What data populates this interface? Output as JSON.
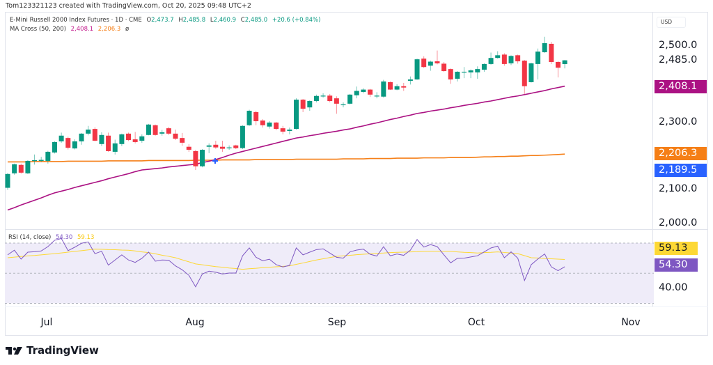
{
  "credit": "Tom123321123 created with TradingView.com, Oct 20, 2025 09:48 UTC+2",
  "legend": {
    "symbol": "E-Mini Russell 2000 Index Futures · 1D · CME",
    "open_label": "O",
    "open": "2,473.7",
    "high_label": "H",
    "high": "2,485.8",
    "low_label": "L",
    "low": "2,460.9",
    "close_label": "C",
    "close": "2,485.0",
    "change": "+20.6 (+0.84%)",
    "ma_title": "MA Cross (50, 200)",
    "ma50": "2,408.1",
    "ma200": "2,206.3",
    "ma_extra": "ø"
  },
  "rsi_legend": {
    "title": "RSI (14, close)",
    "rsi": "54.30",
    "rsi_ma": "59.13"
  },
  "currency": "USD",
  "price_axis": {
    "ticks": [
      "2,500.0",
      "2,300.0",
      "2,100.0",
      "2,000.0"
    ],
    "last_price": "2,485.0",
    "badges": [
      {
        "label": "2,408.1",
        "color": "#ab1283"
      },
      {
        "label": "2,206.3",
        "color": "#f57f17"
      },
      {
        "label": "2,189.5",
        "color": "#2962ff"
      }
    ]
  },
  "rsi_axis": {
    "ticks": [
      "40.00"
    ],
    "badges": [
      {
        "label": "59.13",
        "color": "#fdd835"
      },
      {
        "label": "54.30",
        "color": "#7e57c2"
      }
    ]
  },
  "time_axis": [
    "Jul",
    "Aug",
    "Sep",
    "Oct",
    "Nov"
  ],
  "brand": "TradingView",
  "colors": {
    "up": "#089981",
    "down": "#f23645",
    "ma50": "#ab1283",
    "ma200": "#f57f17",
    "rsi": "#7e57c2",
    "rsi_ma": "#fdd835",
    "rsi_band": "#efecf9",
    "cross": "#2962ff"
  },
  "chart_data": [
    {
      "type": "candlestick",
      "title": "E-Mini Russell 2000 Index Futures · 1D · CME",
      "ylim": [
        1983,
        2627
      ],
      "grid": false,
      "ohlc_fields": [
        "open",
        "high",
        "low",
        "close"
      ],
      "ohlc": [
        [
          2106,
          2150,
          2100,
          2147
        ],
        [
          2149,
          2178,
          2145,
          2176
        ],
        [
          2174,
          2178,
          2148,
          2151
        ],
        [
          2149,
          2188,
          2147,
          2186
        ],
        [
          2186,
          2205,
          2175,
          2188
        ],
        [
          2186,
          2198,
          2182,
          2189
        ],
        [
          2186,
          2216,
          2178,
          2213
        ],
        [
          2211,
          2244,
          2208,
          2242
        ],
        [
          2244,
          2270,
          2240,
          2261
        ],
        [
          2254,
          2258,
          2220,
          2225
        ],
        [
          2223,
          2250,
          2220,
          2244
        ],
        [
          2244,
          2269,
          2234,
          2267
        ],
        [
          2267,
          2290,
          2262,
          2279
        ],
        [
          2281,
          2286,
          2244,
          2246
        ],
        [
          2236,
          2271,
          2230,
          2263
        ],
        [
          2261,
          2270,
          2213,
          2215
        ],
        [
          2213,
          2249,
          2205,
          2238
        ],
        [
          2236,
          2267,
          2230,
          2265
        ],
        [
          2267,
          2270,
          2245,
          2248
        ],
        [
          2250,
          2272,
          2238,
          2242
        ],
        [
          2246,
          2265,
          2240,
          2259
        ],
        [
          2263,
          2296,
          2262,
          2294
        ],
        [
          2292,
          2294,
          2261,
          2263
        ],
        [
          2267,
          2278,
          2261,
          2271
        ],
        [
          2283,
          2287,
          2263,
          2267
        ],
        [
          2267,
          2279,
          2248,
          2252
        ],
        [
          2254,
          2269,
          2231,
          2240
        ],
        [
          2228,
          2236,
          2213,
          2219
        ],
        [
          2215,
          2219,
          2159,
          2170
        ],
        [
          2170,
          2221,
          2167,
          2219
        ],
        [
          2228,
          2238,
          2209,
          2232
        ],
        [
          2234,
          2246,
          2222,
          2226
        ],
        [
          2228,
          2246,
          2213,
          2222
        ],
        [
          2226,
          2232,
          2219,
          2226
        ],
        [
          2232,
          2234,
          2221,
          2224
        ],
        [
          2224,
          2292,
          2221,
          2290
        ],
        [
          2292,
          2338,
          2290,
          2335
        ],
        [
          2331,
          2335,
          2292,
          2304
        ],
        [
          2306,
          2310,
          2285,
          2292
        ],
        [
          2288,
          2304,
          2282,
          2300
        ],
        [
          2300,
          2302,
          2277,
          2281
        ],
        [
          2283,
          2290,
          2265,
          2273
        ],
        [
          2275,
          2285,
          2265,
          2279
        ],
        [
          2281,
          2372,
          2279,
          2368
        ],
        [
          2368,
          2370,
          2331,
          2341
        ],
        [
          2345,
          2366,
          2335,
          2364
        ],
        [
          2364,
          2383,
          2360,
          2379
        ],
        [
          2378,
          2387,
          2374,
          2380
        ],
        [
          2380,
          2385,
          2360,
          2364
        ],
        [
          2372,
          2378,
          2326,
          2356
        ],
        [
          2354,
          2360,
          2345,
          2354
        ],
        [
          2356,
          2385,
          2354,
          2383
        ],
        [
          2381,
          2407,
          2372,
          2394
        ],
        [
          2391,
          2402,
          2387,
          2398
        ],
        [
          2398,
          2400,
          2376,
          2383
        ],
        [
          2379,
          2390,
          2372,
          2380
        ],
        [
          2377,
          2427,
          2374,
          2422
        ],
        [
          2420,
          2422,
          2397,
          2398
        ],
        [
          2398,
          2414,
          2396,
          2408
        ],
        [
          2408,
          2418,
          2394,
          2404
        ],
        [
          2424,
          2437,
          2413,
          2428
        ],
        [
          2428,
          2490,
          2427,
          2488
        ],
        [
          2490,
          2497,
          2462,
          2465
        ],
        [
          2469,
          2484,
          2454,
          2481
        ],
        [
          2482,
          2514,
          2473,
          2476
        ],
        [
          2475,
          2480,
          2451,
          2453
        ],
        [
          2459,
          2461,
          2415,
          2428
        ],
        [
          2430,
          2453,
          2422,
          2451
        ],
        [
          2449,
          2465,
          2432,
          2451
        ],
        [
          2449,
          2458,
          2432,
          2455
        ],
        [
          2449,
          2467,
          2430,
          2459
        ],
        [
          2457,
          2476,
          2451,
          2474
        ],
        [
          2474,
          2508,
          2472,
          2492
        ],
        [
          2492,
          2512,
          2490,
          2500
        ],
        [
          2502,
          2506,
          2469,
          2474
        ],
        [
          2476,
          2500,
          2471,
          2498
        ],
        [
          2500,
          2502,
          2475,
          2482
        ],
        [
          2484,
          2486,
          2385,
          2408
        ],
        [
          2420,
          2478,
          2419,
          2476
        ],
        [
          2474,
          2520,
          2428,
          2511
        ],
        [
          2509,
          2555,
          2507,
          2536
        ],
        [
          2534,
          2540,
          2474,
          2480
        ],
        [
          2480,
          2482,
          2434,
          2463
        ],
        [
          2473.7,
          2485.8,
          2460.9,
          2485.0
        ]
      ],
      "series": [
        {
          "name": "MA Cross (50, 200)",
          "values": [
            2040,
            2047,
            2055,
            2062,
            2069,
            2076,
            2084,
            2091,
            2096,
            2101,
            2107,
            2112,
            2117,
            2122,
            2127,
            2133,
            2138,
            2143,
            2148,
            2154,
            2159,
            2161,
            2163,
            2165,
            2168,
            2170,
            2172,
            2174,
            2176,
            2181,
            2185,
            2190,
            2196,
            2203,
            2209,
            2214,
            2219,
            2224,
            2229,
            2234,
            2239,
            2244,
            2249,
            2254,
            2257,
            2261,
            2264,
            2268,
            2271,
            2274,
            2278,
            2281,
            2286,
            2290,
            2295,
            2299,
            2304,
            2309,
            2313,
            2318,
            2322,
            2327,
            2330,
            2334,
            2337,
            2340,
            2344,
            2347,
            2351,
            2354,
            2357,
            2361,
            2364,
            2368,
            2372,
            2376,
            2379,
            2383,
            2387,
            2391,
            2395,
            2400,
            2404,
            2408.1
          ]
        },
        {
          "values": [
            2183,
            2183,
            2183,
            2183,
            2184,
            2184,
            2184,
            2184,
            2184,
            2185,
            2185,
            2185,
            2185,
            2185,
            2185,
            2186,
            2186,
            2186,
            2186,
            2186,
            2186,
            2187,
            2187,
            2187,
            2187,
            2187,
            2187,
            2187,
            2188,
            2188,
            2188,
            2188,
            2189,
            2189,
            2189,
            2189,
            2189,
            2190,
            2190,
            2190,
            2190,
            2190,
            2190,
            2191,
            2191,
            2191,
            2191,
            2191,
            2191,
            2191,
            2192,
            2192,
            2192,
            2192,
            2193,
            2193,
            2193,
            2193,
            2194,
            2194,
            2194,
            2194,
            2195,
            2195,
            2195,
            2195,
            2196,
            2196,
            2196,
            2196,
            2197,
            2198,
            2198,
            2199,
            2199,
            2200,
            2200,
            2201,
            2202,
            2202,
            2203,
            2204,
            2205,
            2206.3
          ]
        }
      ],
      "x_tick_labels": [
        "Jul",
        "Aug",
        "Sep",
        "Oct",
        "Nov"
      ]
    },
    {
      "type": "line",
      "title": "RSI (14, close)",
      "ylim": [
        27.9,
        76.5
      ],
      "levels": [
        70,
        50,
        30
      ],
      "series": [
        {
          "name": "RSI",
          "values": [
            62.2,
            65.3,
            59.4,
            64,
            64.3,
            64.8,
            67.7,
            71.9,
            73.1,
            65,
            67.3,
            69.9,
            70.8,
            63,
            64.6,
            55.4,
            58.8,
            62.2,
            58.8,
            57.2,
            59.9,
            64,
            58,
            58.8,
            58.6,
            54.9,
            52.3,
            48.6,
            41,
            49.5,
            51.4,
            50.7,
            49.5,
            50.1,
            50.1,
            61.6,
            66.8,
            60.6,
            58.3,
            59.3,
            55.7,
            54.2,
            55.2,
            66.8,
            62.2,
            64,
            65.7,
            66.2,
            63.4,
            60.6,
            60,
            64.2,
            65.4,
            66,
            62.6,
            61.4,
            67.6,
            61.6,
            62.8,
            61.9,
            65.3,
            72.4,
            67.4,
            69,
            67.7,
            62.2,
            56.9,
            59.9,
            60,
            60.8,
            61.6,
            64.2,
            66.8,
            68,
            60.3,
            64.2,
            60,
            45.2,
            55.7,
            59.5,
            62.8,
            54.2,
            51.7,
            54.3
          ]
        },
        {
          "name": "RSI MA",
          "values": [
            60.3,
            60.7,
            61.1,
            61.5,
            61.8,
            62.2,
            62.6,
            63,
            63.5,
            64,
            64.5,
            65,
            65.5,
            66,
            65.9,
            65.7,
            65.6,
            65.4,
            65.3,
            64.8,
            64.2,
            63.7,
            62.9,
            62,
            61.2,
            60.3,
            58.9,
            57.6,
            56.2,
            55.6,
            55,
            54.4,
            54,
            53.5,
            53.1,
            52.6,
            53,
            53.3,
            53.7,
            54,
            54.3,
            54.6,
            54.9,
            55.9,
            56.8,
            57.8,
            58.8,
            59.6,
            60.4,
            61.2,
            61.6,
            61.9,
            62.3,
            62.6,
            62.9,
            63.2,
            63.4,
            63.7,
            63.9,
            64,
            64.2,
            64.3,
            64.5,
            64.6,
            64.6,
            64.5,
            64.5,
            64.2,
            63.9,
            63.7,
            63.4,
            63.7,
            63.9,
            64.2,
            63.8,
            63.4,
            63,
            61.7,
            60.3,
            60.1,
            59.8,
            59.6,
            59.4,
            59.13
          ]
        }
      ]
    }
  ]
}
